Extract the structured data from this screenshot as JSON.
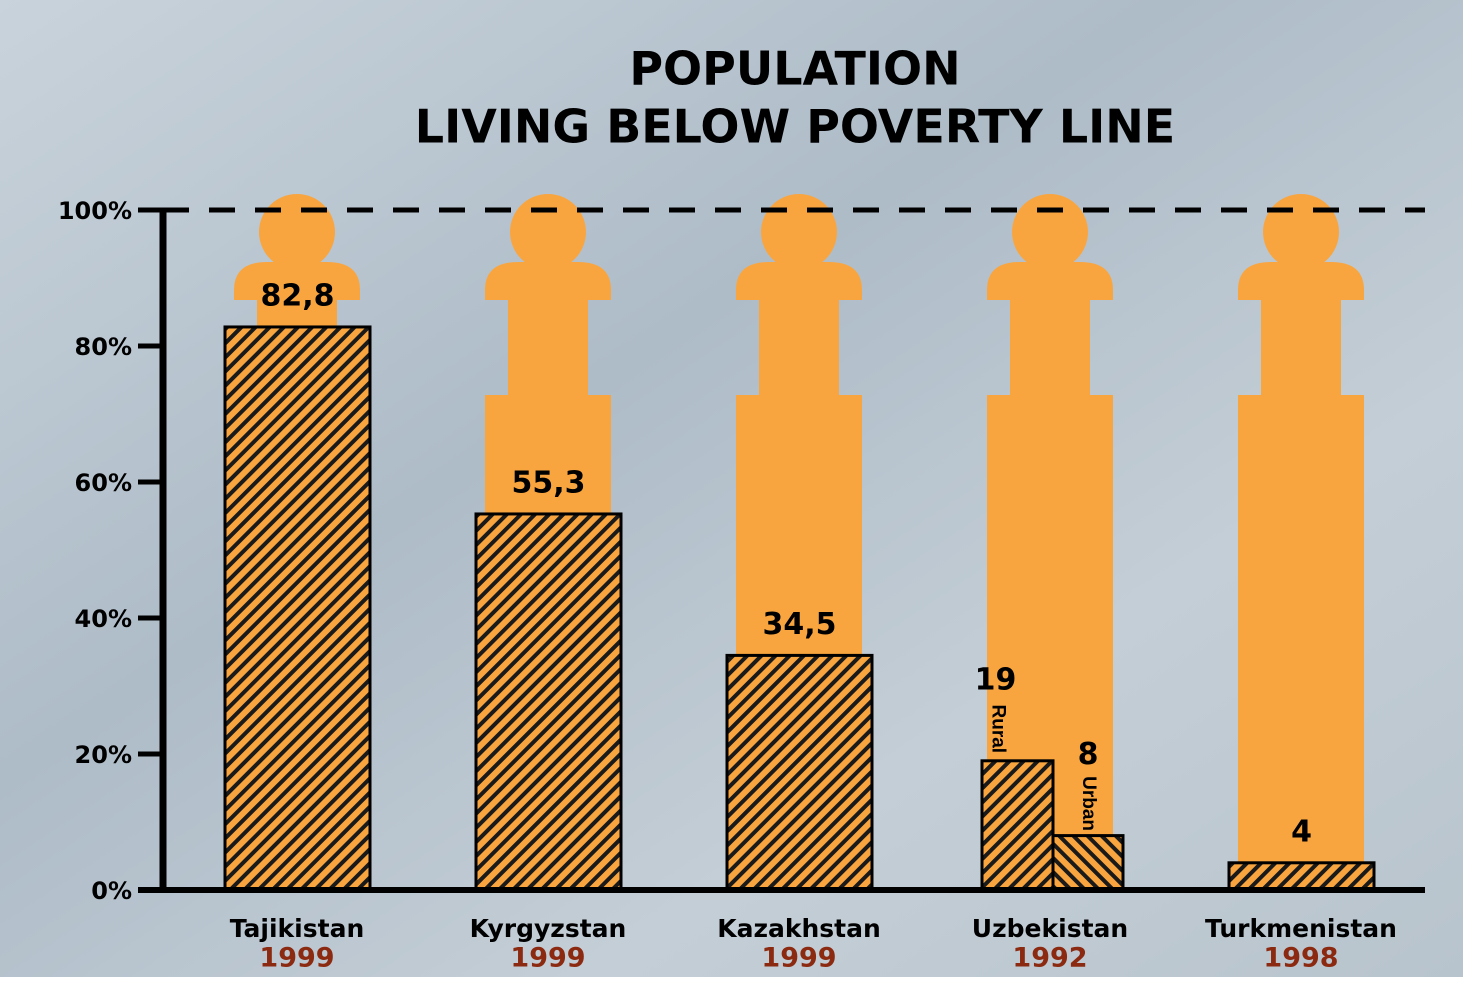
{
  "chart_data": {
    "type": "bar",
    "title": [
      "POPULATION",
      "LIVING BELOW POVERTY LINE"
    ],
    "categories": [
      "Tajikistan",
      "Kyrgyzstan",
      "Kazakhstan",
      "Uzbekistan",
      "Turkmenistan"
    ],
    "years": [
      "1999",
      "1999",
      "1999",
      "1992",
      "1998"
    ],
    "series": [
      {
        "color": "#f9a53f",
        "values": [
          82.8,
          55.3,
          34.5,
          19,
          4
        ],
        "value_labels": [
          "82,8",
          "55,3",
          "34,5",
          "19",
          "4"
        ],
        "bar_labels": [
          null,
          null,
          null,
          "Rural",
          null
        ]
      },
      {
        "color": "#f9a53f",
        "values": [
          null,
          null,
          null,
          8,
          null
        ],
        "value_labels": [
          null,
          null,
          null,
          "8",
          null
        ],
        "bar_labels": [
          null,
          null,
          null,
          "Urban",
          null
        ]
      }
    ],
    "ylim": [
      0,
      100
    ],
    "yticks": [
      {
        "value": 0,
        "label": "0%"
      },
      {
        "value": 20,
        "label": "20%"
      },
      {
        "value": 40,
        "label": "40%"
      },
      {
        "value": 60,
        "label": "60%"
      },
      {
        "value": 80,
        "label": "80%"
      },
      {
        "value": 100,
        "label": "100%"
      }
    ],
    "silhouette_color": "#f9a53f",
    "year_color": "#8b2a10"
  }
}
